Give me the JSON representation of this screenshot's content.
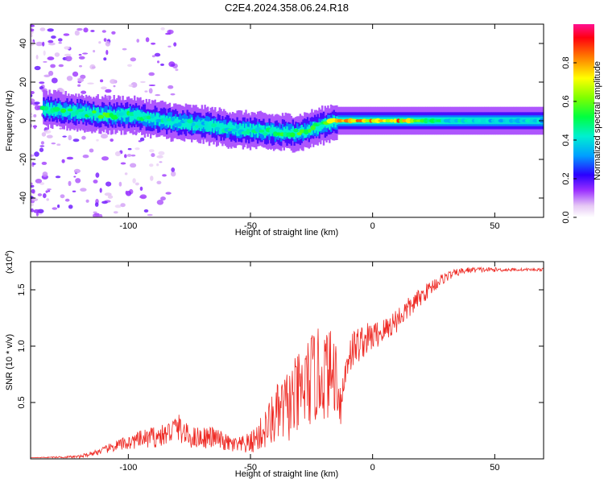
{
  "title": "C2E4.2024.358.06.24.R18",
  "chart_data": [
    {
      "type": "heatmap",
      "xlabel": "Height of straight line (km)",
      "ylabel": "Frequency (Hz)",
      "xlim": [
        -140,
        70
      ],
      "ylim": [
        -50,
        50
      ],
      "xticks": [
        -100,
        -50,
        0,
        50
      ],
      "yticks": [
        -40,
        -20,
        0,
        20,
        40
      ],
      "colorbar": {
        "label": "Normalized spectral amplitude",
        "range": [
          0,
          1
        ],
        "ticks": [
          "0.0",
          "0.2",
          "0.4",
          "0.6",
          "0.8"
        ]
      },
      "ridge": {
        "x": [
          -137,
          -125,
          -110,
          -100,
          -90,
          -80,
          -70,
          -60,
          -50,
          -40,
          -30,
          -22,
          -15,
          -5,
          0,
          10,
          20,
          30,
          40,
          50,
          60,
          70
        ],
        "freq": [
          6,
          5,
          3,
          3,
          1,
          -1,
          -2,
          -4,
          -5,
          -6,
          -6,
          -3,
          0,
          0,
          0,
          0,
          0,
          0,
          0,
          0,
          0,
          0
        ],
        "amplitude": [
          0.45,
          0.5,
          0.55,
          0.5,
          0.45,
          0.45,
          0.4,
          0.45,
          0.45,
          0.5,
          0.55,
          0.55,
          0.75,
          0.85,
          0.8,
          0.85,
          0.55,
          0.45,
          0.4,
          0.4,
          0.4,
          0.4
        ]
      },
      "grid": false,
      "legend": "none"
    },
    {
      "type": "line",
      "xlabel": "Height of straight line (km)",
      "ylabel": "SNR (10 * v/v)",
      "y_multiplier": "(x10",
      "y_multiplier_exp": "4",
      "y_multiplier_close": ")",
      "xlim": [
        -140,
        70
      ],
      "ylim": [
        0,
        1.75
      ],
      "xticks": [
        -100,
        -50,
        0,
        50
      ],
      "yticks": [
        "0.5",
        "1.0",
        "1.5"
      ],
      "series": [
        {
          "color": "#ee2a24",
          "x": [
            -140,
            -120,
            -110,
            -105,
            -100,
            -95,
            -90,
            -85,
            -80,
            -75,
            -70,
            -65,
            -60,
            -55,
            -50,
            -45,
            -40,
            -35,
            -30,
            -25,
            -20,
            -15,
            -13,
            -10,
            -5,
            0,
            5,
            10,
            15,
            20,
            25,
            30,
            35,
            40,
            50,
            60,
            70
          ],
          "y": [
            0.01,
            0.02,
            0.08,
            0.12,
            0.15,
            0.18,
            0.2,
            0.22,
            0.3,
            0.2,
            0.2,
            0.2,
            0.15,
            0.12,
            0.15,
            0.25,
            0.4,
            0.5,
            0.6,
            0.75,
            0.8,
            0.8,
            0.5,
            0.95,
            1.05,
            1.1,
            1.15,
            1.25,
            1.35,
            1.45,
            1.55,
            1.62,
            1.66,
            1.68,
            1.68,
            1.68,
            1.68
          ],
          "noise": [
            0.0,
            0.02,
            0.05,
            0.08,
            0.1,
            0.12,
            0.15,
            0.15,
            0.2,
            0.15,
            0.15,
            0.15,
            0.12,
            0.12,
            0.15,
            0.25,
            0.4,
            0.5,
            0.6,
            0.65,
            0.65,
            0.55,
            0.3,
            0.3,
            0.25,
            0.2,
            0.18,
            0.18,
            0.15,
            0.12,
            0.1,
            0.07,
            0.05,
            0.04,
            0.03,
            0.02,
            0.02
          ]
        }
      ],
      "grid": false,
      "legend": "none"
    }
  ]
}
